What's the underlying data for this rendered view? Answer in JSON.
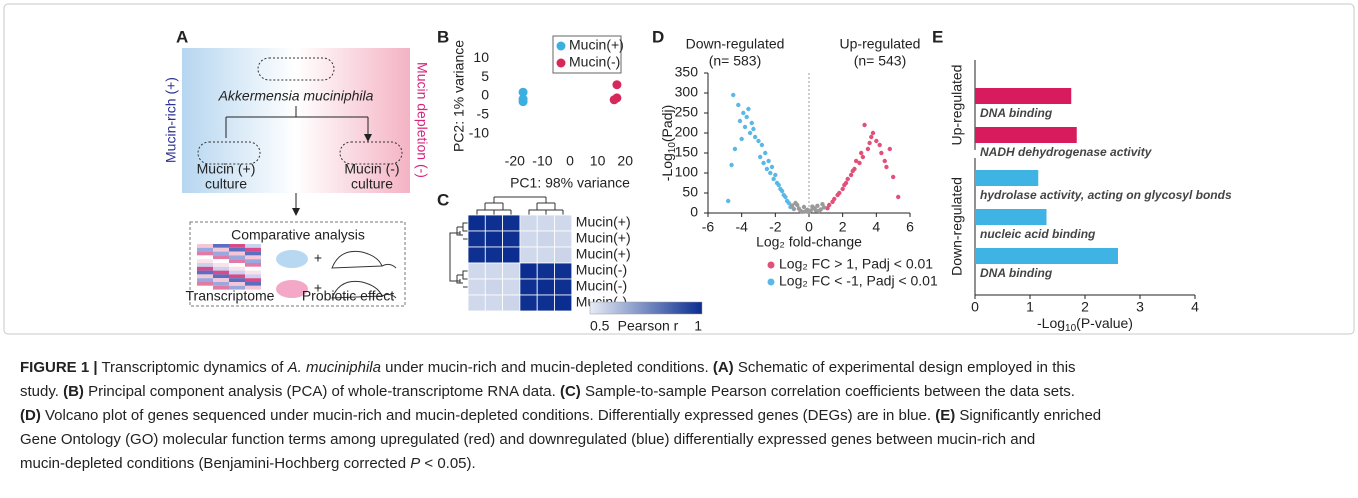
{
  "schematic": {
    "panel": "A",
    "left": "Mucin-rich (+)",
    "right": "Mucin depletion (-)",
    "organism": "Akkermensia muciniphila",
    "cultures": [
      [
        "Mucin (+)",
        "culture"
      ],
      [
        "Mucin (-)",
        "culture"
      ]
    ],
    "analysis": "Comparative analysis",
    "outputs": [
      "Transcriptome",
      "Probiotic effect"
    ]
  },
  "chart_data": [
    {
      "panel": "B",
      "type": "scatter",
      "xlabel": "PC1: 98% variance",
      "ylabel": "PC2: 1% variance",
      "xlim": [
        -25,
        25
      ],
      "xticks": [
        -20,
        -10,
        0,
        10,
        20
      ],
      "ylim": [
        -13,
        13
      ],
      "yticks": [
        10,
        5,
        0,
        -5,
        -10
      ],
      "axes": false,
      "legend": "upper right",
      "series": [
        {
          "name": "Mucin(+)",
          "color": "#3daee0",
          "x": [
            -17,
            -17,
            -17
          ],
          "values": [
            1,
            -0.8,
            -1.5
          ]
        },
        {
          "name": "Mucin(-)",
          "color": "#d7285a",
          "x": [
            17,
            16,
            17
          ],
          "values": [
            3,
            -1,
            -0.5
          ]
        }
      ]
    },
    {
      "panel": "C",
      "type": "heatmap",
      "rows": [
        "Mucin(+)",
        "Mucin(+)",
        "Mucin(+)",
        "Mucin(-)",
        "Mucin(-)",
        "Mucin(-)"
      ],
      "values": [
        [
          1,
          0.99,
          0.99,
          0.55,
          0.55,
          0.55
        ],
        [
          0.99,
          1,
          0.99,
          0.55,
          0.56,
          0.55
        ],
        [
          0.99,
          0.99,
          1,
          0.55,
          0.55,
          0.56
        ],
        [
          0.55,
          0.55,
          0.55,
          1,
          0.99,
          0.99
        ],
        [
          0.55,
          0.56,
          0.55,
          0.99,
          1,
          0.99
        ],
        [
          0.55,
          0.55,
          0.56,
          0.99,
          0.99,
          1
        ]
      ],
      "colorbar": {
        "label": "Pearson r",
        "lim": [
          0.5,
          1
        ],
        "colors": [
          "#e6ebf5",
          "#0a2d8f"
        ]
      }
    },
    {
      "panel": "D",
      "type": "scatter",
      "xlabel": "Log₂ fold-change",
      "ylabel": [
        "-Log",
        "10",
        "(Padj)"
      ],
      "annotations": [
        "Down-regulated",
        "(n= 583)",
        "Up-regulated",
        "(n= 543)"
      ],
      "xlim": [
        -6,
        6
      ],
      "xticks": [
        -6,
        -4,
        -2,
        0,
        2,
        4,
        6
      ],
      "ylim": [
        0,
        350
      ],
      "yticks": [
        0,
        50,
        100,
        150,
        200,
        250,
        300,
        350
      ],
      "axes": true,
      "zero_line": true,
      "legend": "below",
      "series": [
        {
          "name": "Log₂ FC > 1, Padj < 0.01",
          "color": "#e2507a",
          "x": [
            1.2,
            1.5,
            1.8,
            2.0,
            2.2,
            2.5,
            2.7,
            3.0,
            3.2,
            3.5,
            3.8,
            4.0,
            4.3,
            4.6,
            5.0,
            5.3,
            1.4,
            1.7,
            2.3,
            2.8,
            3.3,
            3.7,
            4.2,
            1.1,
            2.1,
            2.6,
            3.1,
            3.6,
            4.5,
            4.8
          ],
          "values": [
            20,
            35,
            50,
            60,
            75,
            95,
            110,
            125,
            140,
            160,
            200,
            180,
            150,
            115,
            90,
            40,
            28,
            45,
            85,
            130,
            220,
            190,
            170,
            12,
            70,
            105,
            150,
            175,
            130,
            160
          ]
        },
        {
          "name": "Log₂ FC < -1, Padj < 0.01",
          "color": "#5ab8e6",
          "x": [
            -4.5,
            -4.2,
            -3.9,
            -4.1,
            -3.7,
            -3.5,
            -3.3,
            -3.0,
            -2.8,
            -2.6,
            -2.4,
            -2.2,
            -2.0,
            -1.8,
            -1.6,
            -1.4,
            -1.2,
            -1.1,
            -4.8,
            -4.4,
            -3.6,
            -3.2,
            -2.9,
            -2.5,
            -2.1,
            -1.7,
            -1.3,
            -3.8,
            -4.0,
            -2.7,
            -2.3,
            -1.9,
            -1.5,
            -3.4,
            -4.6
          ],
          "values": [
            295,
            270,
            250,
            230,
            240,
            200,
            210,
            180,
            170,
            150,
            130,
            115,
            95,
            70,
            55,
            40,
            25,
            15,
            30,
            160,
            260,
            190,
            140,
            110,
            85,
            60,
            30,
            215,
            185,
            125,
            100,
            75,
            45,
            225,
            120
          ]
        },
        {
          "color": "#9a9a9a",
          "x": [
            -0.9,
            -0.7,
            -0.5,
            -0.3,
            -0.1,
            0.1,
            0.3,
            0.5,
            0.7,
            0.9,
            -0.8,
            -0.4,
            0,
            0.4,
            0.8,
            -0.6,
            -0.2,
            0.2,
            0.6,
            -1.0
          ],
          "values": [
            10,
            20,
            5,
            15,
            8,
            6,
            12,
            18,
            9,
            14,
            25,
            3,
            2,
            7,
            22,
            11,
            4,
            16,
            5,
            19
          ]
        }
      ]
    },
    {
      "panel": "E",
      "type": "barh",
      "xlabel": [
        "-Log",
        "10",
        "(P-value)"
      ],
      "xlim": [
        0,
        4
      ],
      "xticks": [
        0,
        1,
        2,
        3,
        4
      ],
      "groups": [
        {
          "name": "Up-regulated",
          "color": "#d81b5c",
          "categories": [
            "DNA binding",
            "NADH dehydrogenase activity"
          ],
          "values": [
            1.75,
            1.85
          ]
        },
        {
          "name": "Down-regulated",
          "color": "#3fb3e3",
          "categories": [
            "hydrolase activity, acting on glycosyl bonds",
            "nucleic acid binding",
            "DNA binding"
          ],
          "values": [
            1.15,
            1.3,
            2.6
          ]
        }
      ]
    }
  ],
  "caption": [
    [
      "FIGURE 1 |",
      " Transcriptomic dynamics of ",
      "A. muciniphila",
      " under mucin-rich and mucin-depleted conditions. ",
      "(A)",
      " Schematic of experimental design employed in this"
    ],
    [
      "study. ",
      "(B)",
      " Principal component analysis (PCA) of whole-transcriptome RNA data. ",
      "(C)",
      " Sample-to-sample Pearson correlation coefficients between the data sets."
    ],
    [
      "(D)",
      " Volcano plot of genes sequenced under mucin-rich and mucin-depleted conditions. Differentially expressed genes (DEGs) are in blue. ",
      "(E)",
      " Significantly enriched"
    ],
    [
      "Gene Ontology (GO) molecular function terms among upregulated (red) and downregulated (blue) differentially expressed genes between mucin-rich and"
    ],
    [
      "mucin-depleted conditions (Benjamini-Hochberg corrected ",
      "P",
      " < 0.05)."
    ]
  ]
}
